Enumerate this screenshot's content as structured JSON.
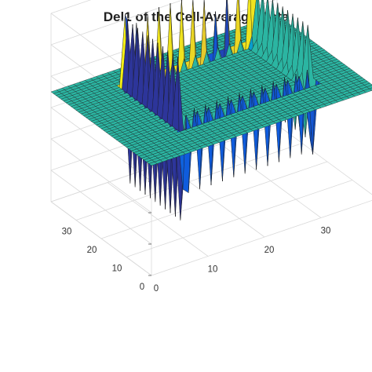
{
  "chart_data": {
    "type": "surface",
    "title": "Del1 of the Cell-Average Data",
    "xlabel": "",
    "ylabel": "",
    "zlabel": "",
    "x_ticks": [
      0,
      10,
      20,
      30
    ],
    "y_ticks": [
      0,
      10,
      20,
      30
    ],
    "x_range": [
      0,
      40
    ],
    "y_range": [
      0,
      40
    ],
    "z_range": [
      -1.4,
      1
    ],
    "grid": true,
    "colormap": "parula",
    "grid_size": 40,
    "plateau_value": 0,
    "surface_notes": "flat plateau at z=0; alternating spikes along the inner boundary of a square region about 10..33 in x and y",
    "edge_spike_values": [
      0.55,
      -1.05,
      0.75,
      -0.45,
      0.8,
      -0.5,
      0.85,
      -0.45,
      0.85,
      -0.5,
      0.85,
      -0.45,
      0.8,
      -0.5,
      0.75,
      -0.9
    ],
    "corner_values": {
      "near_left": -1.3,
      "far_left": 0.9,
      "far_right": 0.85,
      "near_right": -0.9
    }
  },
  "colors": {
    "background": "#ffffff",
    "plateau": "#2bb5a2",
    "peak": "#f9f318",
    "trough": "#3f6ee0",
    "mesh": "#1a1a1a",
    "box_lines": "#d9d9d9"
  }
}
